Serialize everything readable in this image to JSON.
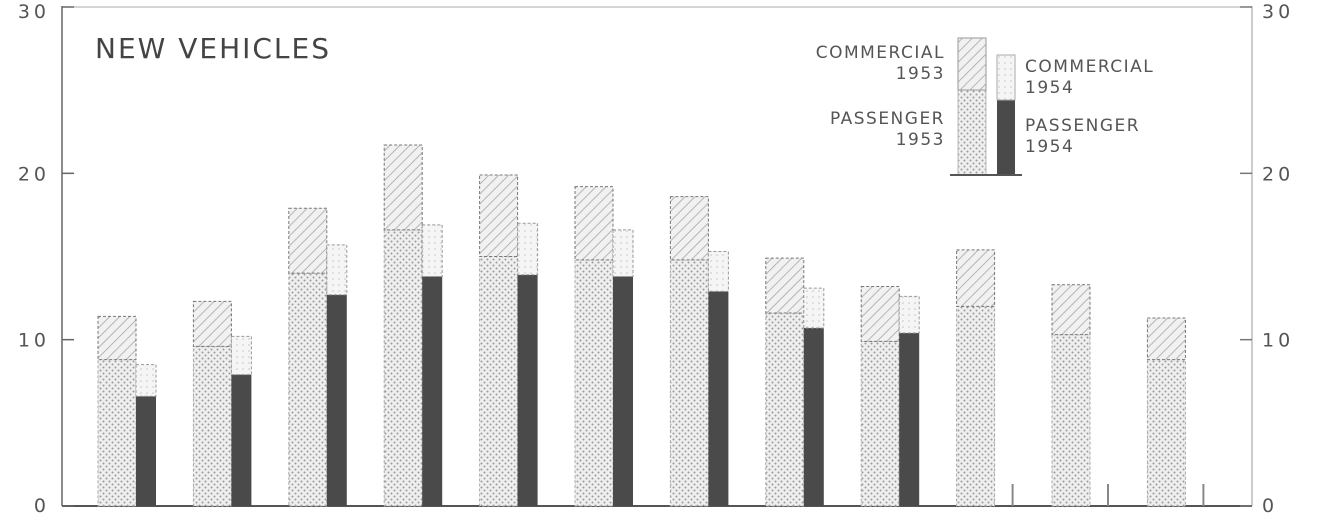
{
  "chart_data": {
    "type": "bar",
    "title": "NEW VEHICLES",
    "ylim": [
      0,
      30
    ],
    "y_ticks": [
      "0",
      "10",
      "20",
      "30"
    ],
    "y_tick_values": [
      0,
      10,
      20,
      30
    ],
    "stacked": true,
    "categories": [
      "",
      "",
      "",
      "",
      "",
      "",
      "",
      "",
      "",
      "",
      "",
      ""
    ],
    "groups": [
      {
        "year": "1953",
        "series": [
          {
            "name": "PASSENGER 1953",
            "values": [
              8.8,
              9.6,
              14.0,
              16.6,
              15.0,
              14.8,
              14.8,
              11.6,
              9.9,
              12.0,
              10.3,
              8.8
            ]
          },
          {
            "name": "COMMERCIAL 1953",
            "values": [
              2.6,
              2.7,
              3.9,
              5.1,
              4.9,
              4.4,
              3.8,
              3.3,
              3.3,
              3.4,
              3.0,
              2.5
            ]
          }
        ]
      },
      {
        "year": "1954",
        "series": [
          {
            "name": "PASSENGER 1954",
            "values": [
              6.6,
              7.9,
              12.7,
              13.8,
              13.9,
              13.8,
              12.9,
              10.7,
              10.4,
              null,
              null,
              null
            ]
          },
          {
            "name": "COMMERCIAL 1954",
            "values": [
              1.9,
              2.3,
              3.0,
              3.1,
              3.1,
              2.8,
              2.4,
              2.4,
              2.2,
              null,
              null,
              null
            ]
          }
        ]
      }
    ],
    "legend": {
      "placement": "top-right",
      "entries": {
        "commercial_1953": [
          "COMMERCIAL",
          "1953"
        ],
        "commercial_1954": [
          "COMMERCIAL",
          "1954"
        ],
        "passenger_1953": [
          "PASSENGER",
          "1953"
        ],
        "passenger_1954": [
          "PASSENGER",
          "1954"
        ]
      }
    },
    "grid": false
  },
  "colors": {
    "passenger_1953": "#c8c8c8",
    "commercial_1953": "#d6d6d6",
    "passenger_1954": "#4a4a4a",
    "commercial_1954": "#dcdcdc",
    "axis": "#555555",
    "text": "#4a4a4a"
  }
}
